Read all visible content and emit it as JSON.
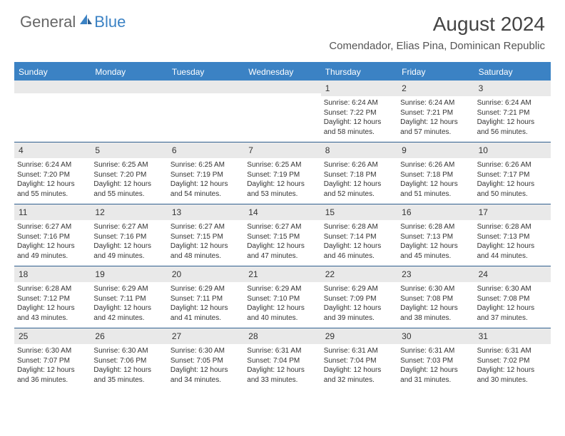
{
  "brand": {
    "general": "General",
    "blue": "Blue"
  },
  "title": "August 2024",
  "location": "Comendador, Elias Pina, Dominican Republic",
  "dayNames": [
    "Sunday",
    "Monday",
    "Tuesday",
    "Wednesday",
    "Thursday",
    "Friday",
    "Saturday"
  ],
  "colors": {
    "headerBar": "#3b82c4",
    "dayNumBg": "#e9e9e9",
    "weekBorder": "#2f5f8f",
    "text": "#333333",
    "background": "#ffffff"
  },
  "typography": {
    "monthTitle_fontsize": 28,
    "location_fontsize": 15,
    "dayHeader_fontsize": 12,
    "dayNum_fontsize": 12,
    "info_fontsize": 10
  },
  "layout": {
    "columns": 7,
    "rows": 5,
    "firstDayOffset": 4
  },
  "days": [
    {
      "n": 1,
      "sunrise": "6:24 AM",
      "sunset": "7:22 PM",
      "daylight": "12 hours and 58 minutes."
    },
    {
      "n": 2,
      "sunrise": "6:24 AM",
      "sunset": "7:21 PM",
      "daylight": "12 hours and 57 minutes."
    },
    {
      "n": 3,
      "sunrise": "6:24 AM",
      "sunset": "7:21 PM",
      "daylight": "12 hours and 56 minutes."
    },
    {
      "n": 4,
      "sunrise": "6:24 AM",
      "sunset": "7:20 PM",
      "daylight": "12 hours and 55 minutes."
    },
    {
      "n": 5,
      "sunrise": "6:25 AM",
      "sunset": "7:20 PM",
      "daylight": "12 hours and 55 minutes."
    },
    {
      "n": 6,
      "sunrise": "6:25 AM",
      "sunset": "7:19 PM",
      "daylight": "12 hours and 54 minutes."
    },
    {
      "n": 7,
      "sunrise": "6:25 AM",
      "sunset": "7:19 PM",
      "daylight": "12 hours and 53 minutes."
    },
    {
      "n": 8,
      "sunrise": "6:26 AM",
      "sunset": "7:18 PM",
      "daylight": "12 hours and 52 minutes."
    },
    {
      "n": 9,
      "sunrise": "6:26 AM",
      "sunset": "7:18 PM",
      "daylight": "12 hours and 51 minutes."
    },
    {
      "n": 10,
      "sunrise": "6:26 AM",
      "sunset": "7:17 PM",
      "daylight": "12 hours and 50 minutes."
    },
    {
      "n": 11,
      "sunrise": "6:27 AM",
      "sunset": "7:16 PM",
      "daylight": "12 hours and 49 minutes."
    },
    {
      "n": 12,
      "sunrise": "6:27 AM",
      "sunset": "7:16 PM",
      "daylight": "12 hours and 49 minutes."
    },
    {
      "n": 13,
      "sunrise": "6:27 AM",
      "sunset": "7:15 PM",
      "daylight": "12 hours and 48 minutes."
    },
    {
      "n": 14,
      "sunrise": "6:27 AM",
      "sunset": "7:15 PM",
      "daylight": "12 hours and 47 minutes."
    },
    {
      "n": 15,
      "sunrise": "6:28 AM",
      "sunset": "7:14 PM",
      "daylight": "12 hours and 46 minutes."
    },
    {
      "n": 16,
      "sunrise": "6:28 AM",
      "sunset": "7:13 PM",
      "daylight": "12 hours and 45 minutes."
    },
    {
      "n": 17,
      "sunrise": "6:28 AM",
      "sunset": "7:13 PM",
      "daylight": "12 hours and 44 minutes."
    },
    {
      "n": 18,
      "sunrise": "6:28 AM",
      "sunset": "7:12 PM",
      "daylight": "12 hours and 43 minutes."
    },
    {
      "n": 19,
      "sunrise": "6:29 AM",
      "sunset": "7:11 PM",
      "daylight": "12 hours and 42 minutes."
    },
    {
      "n": 20,
      "sunrise": "6:29 AM",
      "sunset": "7:11 PM",
      "daylight": "12 hours and 41 minutes."
    },
    {
      "n": 21,
      "sunrise": "6:29 AM",
      "sunset": "7:10 PM",
      "daylight": "12 hours and 40 minutes."
    },
    {
      "n": 22,
      "sunrise": "6:29 AM",
      "sunset": "7:09 PM",
      "daylight": "12 hours and 39 minutes."
    },
    {
      "n": 23,
      "sunrise": "6:30 AM",
      "sunset": "7:08 PM",
      "daylight": "12 hours and 38 minutes."
    },
    {
      "n": 24,
      "sunrise": "6:30 AM",
      "sunset": "7:08 PM",
      "daylight": "12 hours and 37 minutes."
    },
    {
      "n": 25,
      "sunrise": "6:30 AM",
      "sunset": "7:07 PM",
      "daylight": "12 hours and 36 minutes."
    },
    {
      "n": 26,
      "sunrise": "6:30 AM",
      "sunset": "7:06 PM",
      "daylight": "12 hours and 35 minutes."
    },
    {
      "n": 27,
      "sunrise": "6:30 AM",
      "sunset": "7:05 PM",
      "daylight": "12 hours and 34 minutes."
    },
    {
      "n": 28,
      "sunrise": "6:31 AM",
      "sunset": "7:04 PM",
      "daylight": "12 hours and 33 minutes."
    },
    {
      "n": 29,
      "sunrise": "6:31 AM",
      "sunset": "7:04 PM",
      "daylight": "12 hours and 32 minutes."
    },
    {
      "n": 30,
      "sunrise": "6:31 AM",
      "sunset": "7:03 PM",
      "daylight": "12 hours and 31 minutes."
    },
    {
      "n": 31,
      "sunrise": "6:31 AM",
      "sunset": "7:02 PM",
      "daylight": "12 hours and 30 minutes."
    }
  ],
  "labels": {
    "sunrise": "Sunrise:",
    "sunset": "Sunset:",
    "daylight": "Daylight:"
  }
}
